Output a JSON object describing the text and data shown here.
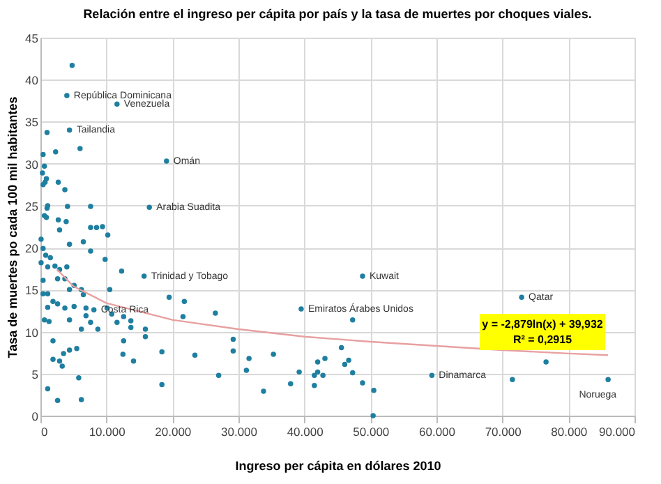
{
  "chart_data": {
    "type": "scatter",
    "title": "Relación entre el ingreso per cápita por país y la tasa de muertes por choques viales.",
    "xlabel": "Ingreso per cápita en dólares 2010",
    "ylabel": "Tasa de muertes po cada 100 mil habitantes",
    "xlim": [
      0,
      90000
    ],
    "xticks": [
      0,
      {
        "value": 10000,
        "label": "10.000"
      },
      {
        "value": 20000,
        "label": "20.000"
      },
      {
        "value": 30000,
        "label": "30.000"
      },
      {
        "value": 40000,
        "label": "40.000"
      },
      {
        "value": 50000,
        "label": "50.000"
      },
      {
        "value": 60000,
        "label": "60.000"
      },
      {
        "value": 70000,
        "label": "70.000"
      },
      {
        "value": 80000,
        "label": "80.000"
      },
      {
        "value": 90000,
        "label": "90.000"
      }
    ],
    "ylim": [
      0,
      45
    ],
    "yticks": [
      0,
      5,
      10,
      15,
      20,
      25,
      30,
      35,
      40,
      45
    ],
    "grid": true,
    "marker": "circle",
    "series": [
      {
        "color": "#1f7fa0",
        "x": [
          4800,
          4000,
          11600,
          4400,
          19100,
          16500,
          1000,
          2300,
          400,
          6000,
          600,
          300,
          900,
          700,
          400,
          2700,
          3700,
          1100,
          1000,
          4100,
          7600,
          600,
          900,
          2700,
          3900,
          2900,
          7600,
          8500,
          9400,
          10200,
          6500,
          4400,
          7600,
          9800,
          100,
          400,
          800,
          1500,
          100,
          1100,
          2200,
          2900,
          4000,
          12300,
          2600,
          3700,
          400,
          4400,
          6200,
          6500,
          10500,
          400,
          1100,
          5100,
          1900,
          2600,
          1100,
          3700,
          5100,
          6900,
          10100,
          10800,
          12600,
          600,
          1300,
          4400,
          6900,
          7600,
          11600,
          13700,
          6200,
          8700,
          13700,
          15900,
          15900,
          12600,
          1900,
          4400,
          5500,
          3500,
          1900,
          2900,
          3300,
          12500,
          14100,
          18400,
          23400,
          5800,
          1100,
          18400,
          2600,
          6200,
          19500,
          21800,
          21600,
          15700,
          8100,
          48800,
          39500,
          47300,
          26500,
          29200,
          29200,
          31600,
          35300,
          31200,
          27000,
          33800,
          37900,
          39200,
          41500,
          42000,
          42000,
          43100,
          42800,
          41500,
          45600,
          46700,
          46100,
          47300,
          48800,
          50500,
          50400,
          72900,
          76600,
          59300,
          71500,
          86000
        ],
        "values": [
          41.7,
          38.1,
          37.1,
          34.0,
          30.3,
          24.8,
          33.7,
          31.4,
          31.1,
          31.8,
          29.7,
          28.9,
          28.2,
          27.8,
          27.5,
          27.8,
          26.9,
          25.0,
          24.7,
          24.9,
          24.9,
          23.8,
          23.6,
          23.3,
          23.1,
          22.1,
          22.4,
          22.4,
          22.5,
          21.5,
          20.7,
          20.4,
          19.6,
          18.6,
          21.0,
          19.9,
          19.1,
          18.8,
          18.2,
          17.7,
          17.8,
          17.4,
          17.7,
          17.2,
          16.3,
          16.3,
          16.1,
          15.0,
          15.0,
          14.4,
          15.0,
          14.5,
          14.5,
          15.5,
          13.6,
          13.3,
          12.9,
          12.8,
          13.0,
          12.8,
          12.8,
          12.1,
          11.8,
          11.4,
          11.2,
          11.4,
          11.9,
          11.1,
          11.1,
          11.3,
          10.3,
          10.3,
          10.5,
          10.3,
          9.4,
          8.9,
          8.9,
          7.8,
          8.0,
          7.4,
          6.7,
          6.5,
          5.9,
          7.3,
          6.5,
          7.6,
          7.2,
          4.5,
          3.2,
          3.7,
          1.8,
          1.9,
          14.1,
          13.6,
          11.8,
          16.6,
          12.6,
          16.6,
          12.7,
          11.4,
          12.2,
          9.1,
          7.7,
          6.8,
          7.3,
          5.4,
          4.8,
          2.9,
          3.8,
          5.2,
          4.8,
          5.2,
          6.4,
          6.8,
          4.8,
          3.6,
          8.1,
          6.6,
          6.1,
          5.1,
          3.9,
          3.0,
          0,
          14.1,
          6.4,
          4.8,
          4.3,
          4.3
        ]
      },
      {
        "type": "line",
        "marker": "none",
        "color": "#e8a0a0",
        "x": [
          2500,
          5000,
          10000,
          20000,
          30000,
          40000,
          50000,
          60000,
          70000,
          80000,
          86000
        ],
        "values": [
          17.4,
          15.4,
          13.4,
          11.4,
          10.3,
          9.4,
          8.8,
          8.3,
          7.8,
          7.4,
          7.2
        ]
      }
    ],
    "annotations": [
      {
        "text": "República Dominicana",
        "x": 4000,
        "y": 38.1
      },
      {
        "text": "Venezuela",
        "x": 11600,
        "y": 37.1
      },
      {
        "text": "Tailandia",
        "x": 4400,
        "y": 34.0
      },
      {
        "text": "Omán",
        "x": 19100,
        "y": 30.3
      },
      {
        "text": "Arabia Suadita",
        "x": 16500,
        "y": 24.8
      },
      {
        "text": "Trinidad y Tobago",
        "x": 15700,
        "y": 16.6
      },
      {
        "text": "Costa Rica",
        "x": 8100,
        "y": 12.6
      },
      {
        "text": "Kuwait",
        "x": 48800,
        "y": 16.6
      },
      {
        "text": "Emiratos Árabes Unidos",
        "x": 39500,
        "y": 12.7
      },
      {
        "text": "Qatar",
        "x": 72900,
        "y": 14.1
      },
      {
        "text": "Dinamarca",
        "x": 59300,
        "y": 4.8
      },
      {
        "text": "Noruega",
        "x": 86000,
        "y": 4.3
      },
      "y = -2,879ln(x) + 39,932",
      "R² = 0,2915"
    ]
  }
}
